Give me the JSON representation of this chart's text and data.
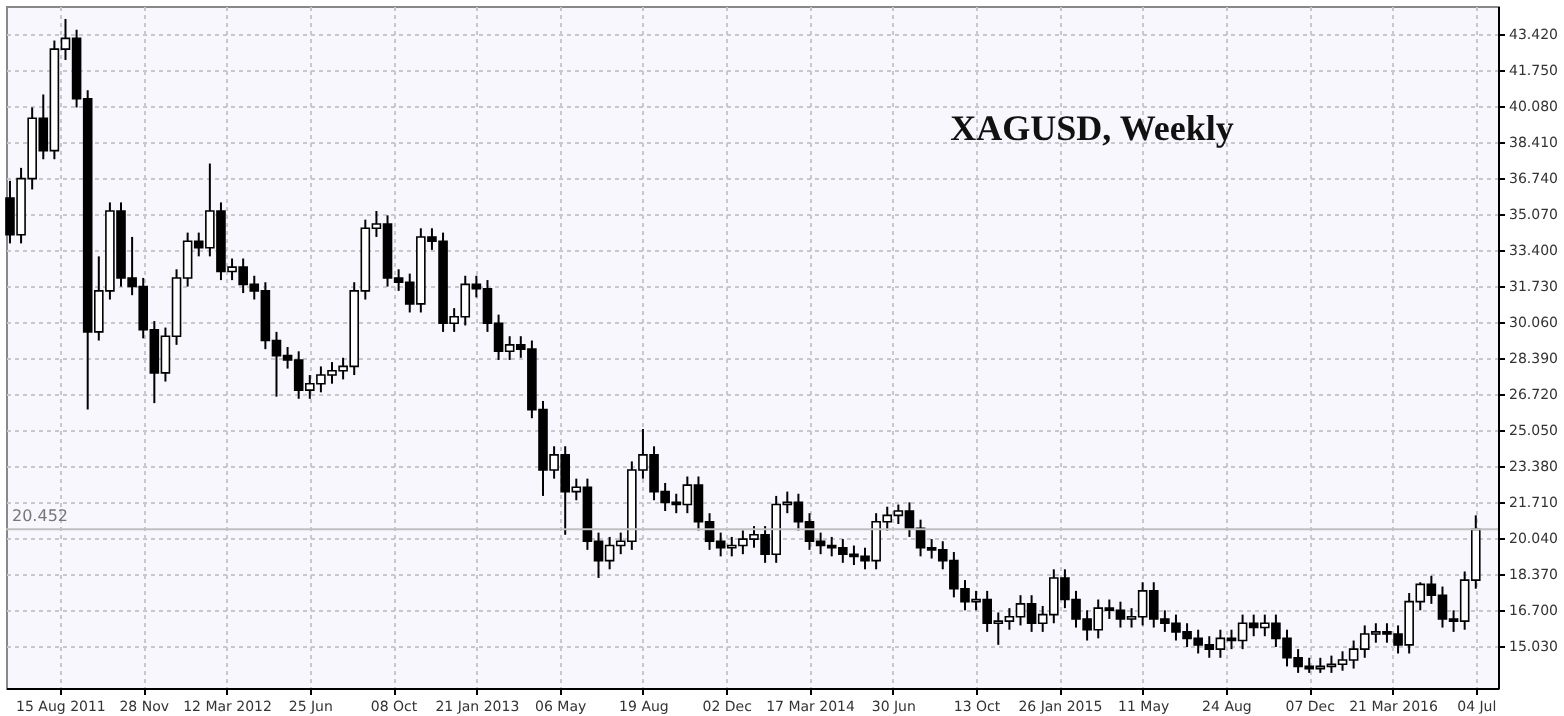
{
  "chart_data": {
    "type": "candlestick",
    "title": "XAGUSD, Weekly",
    "x": [
      "2011-06-13",
      "2011-06-27",
      "2011-07-11",
      "2011-07-25",
      "2011-08-08",
      "2011-08-22",
      "2011-09-05",
      "2011-09-19",
      "2011-10-03",
      "2011-10-17",
      "2011-10-31",
      "2011-11-14",
      "2011-11-28",
      "2011-12-12",
      "2011-12-26",
      "2012-01-09",
      "2012-01-23",
      "2012-02-06",
      "2012-02-20",
      "2012-03-05",
      "2012-03-19",
      "2012-04-02",
      "2012-04-16",
      "2012-04-30",
      "2012-05-14",
      "2012-05-28",
      "2012-06-11",
      "2012-06-25",
      "2012-07-09",
      "2012-07-23",
      "2012-08-06",
      "2012-08-20",
      "2012-09-03",
      "2012-09-17",
      "2012-10-01",
      "2012-10-15",
      "2012-10-29",
      "2012-11-12",
      "2012-11-26",
      "2012-12-10",
      "2012-12-24",
      "2013-01-07",
      "2013-01-21",
      "2013-02-04",
      "2013-02-18",
      "2013-03-04",
      "2013-03-18",
      "2013-04-01",
      "2013-04-15",
      "2013-04-29",
      "2013-05-13",
      "2013-05-27",
      "2013-06-10",
      "2013-06-24",
      "2013-07-08",
      "2013-07-22",
      "2013-08-05",
      "2013-08-19",
      "2013-09-02",
      "2013-09-16",
      "2013-09-30",
      "2013-10-14",
      "2013-10-28",
      "2013-11-11",
      "2013-11-25",
      "2013-12-09",
      "2013-12-23",
      "2014-01-06",
      "2014-01-20",
      "2014-02-03",
      "2014-02-17",
      "2014-03-03",
      "2014-03-17",
      "2014-03-31",
      "2014-04-14",
      "2014-04-28",
      "2014-05-12",
      "2014-05-26",
      "2014-06-09",
      "2014-06-23",
      "2014-07-07",
      "2014-07-21",
      "2014-08-04",
      "2014-08-18",
      "2014-09-01",
      "2014-09-15",
      "2014-09-29",
      "2014-10-13",
      "2014-10-27",
      "2014-11-10",
      "2014-11-24",
      "2014-12-08",
      "2014-12-22",
      "2015-01-05",
      "2015-01-19",
      "2015-02-02",
      "2015-02-16",
      "2015-03-02",
      "2015-03-16",
      "2015-03-30",
      "2015-04-13",
      "2015-04-27",
      "2015-05-11",
      "2015-05-25",
      "2015-06-08",
      "2015-06-22",
      "2015-07-06",
      "2015-07-20",
      "2015-08-03",
      "2015-08-17",
      "2015-08-31",
      "2015-09-14",
      "2015-09-28",
      "2015-10-12",
      "2015-10-26",
      "2015-11-09",
      "2015-11-23",
      "2015-12-07",
      "2015-12-21",
      "2016-01-04",
      "2016-01-18",
      "2016-02-01",
      "2016-02-15",
      "2016-02-29",
      "2016-03-14",
      "2016-03-28",
      "2016-04-11",
      "2016-04-25",
      "2016-05-09",
      "2016-05-23",
      "2016-06-06",
      "2016-06-20",
      "2016-07-04"
    ],
    "ohlc": [
      [
        35.8,
        36.6,
        33.7,
        34.1
      ],
      [
        34.1,
        37.2,
        33.7,
        36.7
      ],
      [
        36.7,
        40.0,
        36.2,
        39.5
      ],
      [
        39.5,
        40.6,
        37.6,
        38.0
      ],
      [
        38.0,
        43.1,
        37.6,
        42.7
      ],
      [
        42.7,
        44.1,
        42.2,
        43.2
      ],
      [
        43.2,
        43.6,
        40.0,
        40.4
      ],
      [
        40.4,
        40.8,
        26.0,
        29.6
      ],
      [
        29.6,
        33.1,
        29.2,
        31.5
      ],
      [
        31.5,
        35.6,
        31.1,
        35.2
      ],
      [
        35.2,
        35.6,
        31.7,
        32.1
      ],
      [
        32.1,
        34.0,
        31.3,
        31.7
      ],
      [
        31.7,
        32.1,
        29.3,
        29.7
      ],
      [
        29.7,
        30.1,
        26.3,
        27.7
      ],
      [
        27.7,
        29.8,
        27.3,
        29.4
      ],
      [
        29.4,
        32.5,
        29.0,
        32.1
      ],
      [
        32.1,
        34.2,
        31.7,
        33.8
      ],
      [
        33.8,
        34.2,
        33.1,
        33.5
      ],
      [
        33.5,
        37.4,
        33.1,
        35.2
      ],
      [
        35.2,
        35.6,
        32.0,
        32.4
      ],
      [
        32.4,
        33.0,
        32.0,
        32.6
      ],
      [
        32.6,
        33.0,
        31.4,
        31.8
      ],
      [
        31.8,
        32.2,
        31.1,
        31.5
      ],
      [
        31.5,
        31.9,
        28.8,
        29.2
      ],
      [
        29.2,
        29.6,
        26.6,
        28.5
      ],
      [
        28.5,
        28.9,
        27.9,
        28.3
      ],
      [
        28.3,
        28.7,
        26.5,
        26.9
      ],
      [
        26.9,
        27.6,
        26.5,
        27.2
      ],
      [
        27.2,
        28.0,
        26.8,
        27.6
      ],
      [
        27.6,
        28.2,
        27.2,
        27.8
      ],
      [
        27.8,
        28.4,
        27.4,
        28.0
      ],
      [
        28.0,
        31.9,
        27.6,
        31.5
      ],
      [
        31.5,
        34.8,
        31.1,
        34.4
      ],
      [
        34.4,
        35.2,
        34.0,
        34.6
      ],
      [
        34.6,
        35.0,
        31.7,
        32.1
      ],
      [
        32.1,
        32.5,
        31.5,
        31.9
      ],
      [
        31.9,
        32.3,
        30.5,
        30.9
      ],
      [
        30.9,
        34.4,
        30.5,
        34.0
      ],
      [
        34.0,
        34.4,
        33.4,
        33.8
      ],
      [
        33.8,
        34.2,
        29.6,
        30.0
      ],
      [
        30.0,
        30.7,
        29.6,
        30.3
      ],
      [
        30.3,
        32.2,
        29.9,
        31.8
      ],
      [
        31.8,
        32.2,
        31.2,
        31.6
      ],
      [
        31.6,
        32.0,
        29.6,
        30.0
      ],
      [
        30.0,
        30.4,
        28.3,
        28.7
      ],
      [
        28.7,
        29.4,
        28.3,
        29.0
      ],
      [
        29.0,
        29.4,
        28.4,
        28.8
      ],
      [
        28.8,
        29.2,
        25.6,
        26.0
      ],
      [
        26.0,
        26.4,
        22.0,
        23.2
      ],
      [
        23.2,
        24.3,
        22.8,
        23.9
      ],
      [
        23.9,
        24.3,
        20.2,
        22.2
      ],
      [
        22.2,
        22.8,
        21.8,
        22.4
      ],
      [
        22.4,
        22.8,
        19.5,
        19.9
      ],
      [
        19.9,
        20.3,
        18.2,
        19.0
      ],
      [
        19.0,
        20.1,
        18.6,
        19.7
      ],
      [
        19.7,
        20.3,
        19.3,
        19.9
      ],
      [
        19.9,
        23.6,
        19.5,
        23.2
      ],
      [
        23.2,
        25.1,
        22.8,
        23.9
      ],
      [
        23.9,
        24.3,
        21.8,
        22.2
      ],
      [
        22.2,
        22.6,
        21.3,
        21.7
      ],
      [
        21.7,
        22.1,
        21.2,
        21.6
      ],
      [
        21.6,
        22.9,
        21.2,
        22.5
      ],
      [
        22.5,
        22.9,
        20.4,
        20.8
      ],
      [
        20.8,
        21.2,
        19.5,
        19.9
      ],
      [
        19.9,
        20.3,
        19.2,
        19.6
      ],
      [
        19.6,
        20.1,
        19.2,
        19.7
      ],
      [
        19.7,
        20.4,
        19.3,
        20.0
      ],
      [
        20.0,
        20.6,
        19.6,
        20.2
      ],
      [
        20.2,
        20.6,
        18.9,
        19.3
      ],
      [
        19.3,
        22.0,
        18.9,
        21.6
      ],
      [
        21.6,
        22.2,
        21.2,
        21.7
      ],
      [
        21.7,
        22.1,
        20.4,
        20.8
      ],
      [
        20.8,
        21.2,
        19.5,
        19.9
      ],
      [
        19.9,
        20.3,
        19.3,
        19.7
      ],
      [
        19.7,
        20.1,
        19.2,
        19.6
      ],
      [
        19.6,
        20.0,
        18.9,
        19.3
      ],
      [
        19.3,
        19.7,
        18.8,
        19.2
      ],
      [
        19.2,
        19.6,
        18.6,
        19.0
      ],
      [
        19.0,
        21.2,
        18.6,
        20.8
      ],
      [
        20.8,
        21.5,
        20.4,
        21.1
      ],
      [
        21.1,
        21.6,
        20.7,
        21.3
      ],
      [
        21.3,
        21.7,
        20.1,
        20.5
      ],
      [
        20.5,
        20.9,
        19.2,
        19.6
      ],
      [
        19.6,
        20.0,
        19.1,
        19.5
      ],
      [
        19.5,
        19.9,
        18.6,
        19.0
      ],
      [
        19.0,
        19.4,
        17.3,
        17.7
      ],
      [
        17.7,
        18.1,
        16.7,
        17.1
      ],
      [
        17.1,
        17.6,
        16.7,
        17.2
      ],
      [
        17.2,
        17.6,
        15.7,
        16.1
      ],
      [
        16.1,
        16.6,
        15.1,
        16.2
      ],
      [
        16.2,
        16.8,
        15.8,
        16.4
      ],
      [
        16.4,
        17.4,
        16.0,
        17.0
      ],
      [
        17.0,
        17.4,
        15.7,
        16.1
      ],
      [
        16.1,
        16.9,
        15.7,
        16.5
      ],
      [
        16.5,
        18.6,
        16.1,
        18.2
      ],
      [
        18.2,
        18.6,
        16.8,
        17.2
      ],
      [
        17.2,
        17.6,
        15.9,
        16.3
      ],
      [
        16.3,
        16.7,
        15.3,
        15.8
      ],
      [
        15.8,
        17.2,
        15.4,
        16.8
      ],
      [
        16.8,
        17.2,
        16.3,
        16.7
      ],
      [
        16.7,
        17.1,
        15.9,
        16.3
      ],
      [
        16.3,
        16.8,
        15.9,
        16.4
      ],
      [
        16.4,
        18.0,
        16.0,
        17.6
      ],
      [
        17.6,
        18.0,
        15.9,
        16.3
      ],
      [
        16.3,
        16.7,
        15.7,
        16.1
      ],
      [
        16.1,
        16.5,
        15.3,
        15.7
      ],
      [
        15.7,
        16.1,
        15.0,
        15.4
      ],
      [
        15.4,
        15.8,
        14.7,
        15.1
      ],
      [
        15.1,
        15.5,
        14.5,
        14.9
      ],
      [
        14.9,
        15.8,
        14.5,
        15.4
      ],
      [
        15.4,
        15.8,
        14.9,
        15.3
      ],
      [
        15.3,
        16.5,
        14.9,
        16.1
      ],
      [
        16.1,
        16.5,
        15.5,
        15.9
      ],
      [
        15.9,
        16.5,
        15.5,
        16.1
      ],
      [
        16.1,
        16.5,
        15.0,
        15.4
      ],
      [
        15.4,
        15.8,
        14.1,
        14.5
      ],
      [
        14.5,
        14.9,
        13.8,
        14.1
      ],
      [
        14.1,
        14.5,
        13.8,
        14.0
      ],
      [
        14.0,
        14.5,
        13.8,
        14.1
      ],
      [
        14.1,
        14.6,
        13.8,
        14.2
      ],
      [
        14.2,
        14.8,
        13.9,
        14.4
      ],
      [
        14.4,
        15.3,
        14.0,
        14.9
      ],
      [
        14.9,
        16.0,
        14.5,
        15.6
      ],
      [
        15.6,
        16.1,
        15.2,
        15.7
      ],
      [
        15.7,
        16.1,
        15.2,
        15.6
      ],
      [
        15.6,
        16.0,
        14.7,
        15.1
      ],
      [
        15.1,
        17.5,
        14.7,
        17.1
      ],
      [
        17.1,
        18.0,
        16.7,
        17.9
      ],
      [
        17.9,
        18.3,
        17.0,
        17.4
      ],
      [
        17.4,
        17.8,
        15.9,
        16.3
      ],
      [
        16.3,
        16.7,
        15.7,
        16.2
      ],
      [
        16.2,
        18.5,
        15.8,
        18.1
      ],
      [
        18.1,
        21.1,
        17.7,
        20.45
      ]
    ],
    "xlim": [
      "2011-06-08",
      "2016-08-01"
    ],
    "xticks": [
      {
        "value": "2011-08-15",
        "label": "15 Aug 2011"
      },
      {
        "value": "2011-11-28",
        "label": "28 Nov"
      },
      {
        "value": "2012-03-12",
        "label": "12 Mar 2012"
      },
      {
        "value": "2012-06-25",
        "label": "25 Jun"
      },
      {
        "value": "2012-10-08",
        "label": "08 Oct"
      },
      {
        "value": "2013-01-21",
        "label": "21 Jan 2013"
      },
      {
        "value": "2013-05-06",
        "label": "06 May"
      },
      {
        "value": "2013-08-19",
        "label": "19 Aug"
      },
      {
        "value": "2013-12-02",
        "label": "02 Dec"
      },
      {
        "value": "2014-03-17",
        "label": "17 Mar 2014"
      },
      {
        "value": "2014-06-30",
        "label": "30 Jun"
      },
      {
        "value": "2014-10-13",
        "label": "13 Oct"
      },
      {
        "value": "2015-01-26",
        "label": "26 Jan 2015"
      },
      {
        "value": "2015-05-11",
        "label": "11 May"
      },
      {
        "value": "2015-08-24",
        "label": "24 Aug"
      },
      {
        "value": "2015-12-07",
        "label": "07 Dec"
      },
      {
        "value": "2016-03-21",
        "label": "21 Mar 2016"
      },
      {
        "value": "2016-07-04",
        "label": "04 Jul"
      }
    ],
    "ylim": [
      13.1,
      44.7
    ],
    "yticks": [
      {
        "value": 15.03,
        "label": "15.030"
      },
      {
        "value": 16.7,
        "label": "16.700"
      },
      {
        "value": 18.37,
        "label": "18.370"
      },
      {
        "value": 20.04,
        "label": "20.040"
      },
      {
        "value": 21.71,
        "label": "21.710"
      },
      {
        "value": 23.38,
        "label": "23.380"
      },
      {
        "value": 25.05,
        "label": "25.050"
      },
      {
        "value": 26.72,
        "label": "26.720"
      },
      {
        "value": 28.39,
        "label": "28.390"
      },
      {
        "value": 30.06,
        "label": "30.060"
      },
      {
        "value": 31.73,
        "label": "31.730"
      },
      {
        "value": 33.4,
        "label": "33.400"
      },
      {
        "value": 35.07,
        "label": "35.070"
      },
      {
        "value": 36.74,
        "label": "36.740"
      },
      {
        "value": 38.41,
        "label": "38.410"
      },
      {
        "value": 40.08,
        "label": "40.080"
      },
      {
        "value": 41.75,
        "label": "41.750"
      },
      {
        "value": 43.42,
        "label": "43.420"
      }
    ],
    "ref_lines": [
      {
        "axis": "y",
        "value": 20.452,
        "label": "20.452",
        "color": "#c0c0c0"
      }
    ],
    "grid": true
  }
}
